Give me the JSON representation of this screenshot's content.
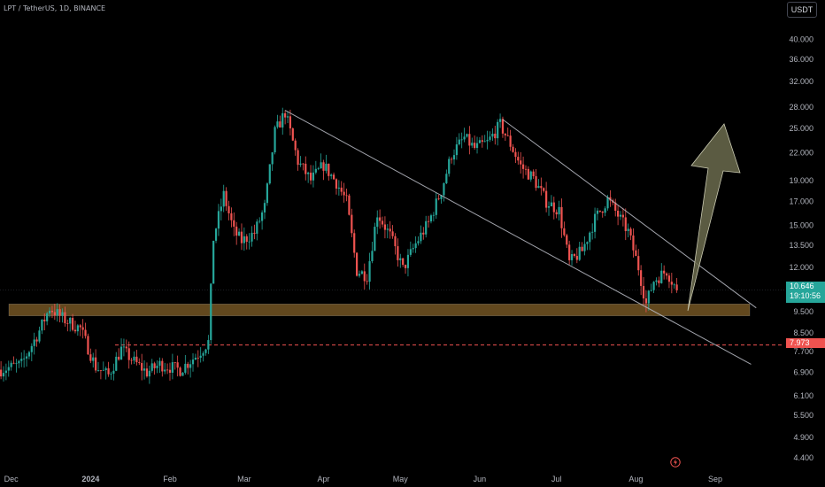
{
  "header": {
    "symbol": "LPT / TetherUS, 1D, BINANCE"
  },
  "toolbar": {
    "currency": "USDT",
    "flash_icon": "lightning-icon"
  },
  "price_tags": {
    "current_price": "10.646",
    "countdown": "19:10:56",
    "level_price": "7.973"
  },
  "colors": {
    "up": "#26a69a",
    "down": "#ef5350",
    "zone": "#7a5a25",
    "arrow": "#6b6b4e",
    "level": "#ef5350",
    "trendline": "#b2b5be",
    "axis_text": "#b2b5be"
  },
  "chart_data": {
    "type": "candlestick",
    "y_scale": "log",
    "ylim": [
      4.1,
      44.0
    ],
    "y_ticks": [
      "40.000",
      "36.000",
      "32.000",
      "28.000",
      "25.000",
      "22.000",
      "19.000",
      "17.000",
      "15.000",
      "13.500",
      "12.000",
      "10.500",
      "9.500",
      "8.500",
      "7.700",
      "6.900",
      "6.100",
      "5.500",
      "4.900",
      "4.400"
    ],
    "x_labels": [
      "Dec",
      "2024",
      "Feb",
      "Mar",
      "Apr",
      "May",
      "Jun",
      "Jul",
      "Aug",
      "Sep"
    ],
    "x_label_dates": [
      "2023-12-01",
      "2024-01-01",
      "2024-02-01",
      "2024-03-01",
      "2024-04-01",
      "2024-05-01",
      "2024-06-01",
      "2024-07-01",
      "2024-08-01",
      "2024-09-01"
    ],
    "closes": [
      {
        "date": "2023-11-27",
        "close": 7.0
      },
      {
        "date": "2023-12-05",
        "close": 7.2
      },
      {
        "date": "2023-12-12",
        "close": 8.6
      },
      {
        "date": "2023-12-16",
        "close": 9.7
      },
      {
        "date": "2023-12-22",
        "close": 9.1
      },
      {
        "date": "2023-12-28",
        "close": 8.7
      },
      {
        "date": "2024-01-03",
        "close": 7.1
      },
      {
        "date": "2024-01-08",
        "close": 6.8
      },
      {
        "date": "2024-01-13",
        "close": 7.8
      },
      {
        "date": "2024-01-18",
        "close": 7.3
      },
      {
        "date": "2024-01-23",
        "close": 6.9
      },
      {
        "date": "2024-01-28",
        "close": 7.2
      },
      {
        "date": "2024-02-05",
        "close": 7.0
      },
      {
        "date": "2024-02-12",
        "close": 7.6
      },
      {
        "date": "2024-02-16",
        "close": 8.1
      },
      {
        "date": "2024-02-18",
        "close": 14.0
      },
      {
        "date": "2024-02-22",
        "close": 17.6
      },
      {
        "date": "2024-02-26",
        "close": 14.5
      },
      {
        "date": "2024-02-29",
        "close": 13.8
      },
      {
        "date": "2024-03-05",
        "close": 14.4
      },
      {
        "date": "2024-03-09",
        "close": 16.5
      },
      {
        "date": "2024-03-13",
        "close": 24.5
      },
      {
        "date": "2024-03-17",
        "close": 27.2
      },
      {
        "date": "2024-03-22",
        "close": 21.0
      },
      {
        "date": "2024-03-27",
        "close": 19.0
      },
      {
        "date": "2024-04-01",
        "close": 20.6
      },
      {
        "date": "2024-04-06",
        "close": 18.8
      },
      {
        "date": "2024-04-10",
        "close": 17.0
      },
      {
        "date": "2024-04-14",
        "close": 11.8
      },
      {
        "date": "2024-04-18",
        "close": 11.5
      },
      {
        "date": "2024-04-22",
        "close": 16.0
      },
      {
        "date": "2024-04-27",
        "close": 14.2
      },
      {
        "date": "2024-05-02",
        "close": 11.9
      },
      {
        "date": "2024-05-07",
        "close": 13.6
      },
      {
        "date": "2024-05-12",
        "close": 15.2
      },
      {
        "date": "2024-05-17",
        "close": 18.0
      },
      {
        "date": "2024-05-21",
        "close": 21.8
      },
      {
        "date": "2024-05-26",
        "close": 23.8
      },
      {
        "date": "2024-05-30",
        "close": 22.5
      },
      {
        "date": "2024-06-04",
        "close": 23.2
      },
      {
        "date": "2024-06-09",
        "close": 25.5
      },
      {
        "date": "2024-06-13",
        "close": 23.0
      },
      {
        "date": "2024-06-17",
        "close": 20.5
      },
      {
        "date": "2024-06-22",
        "close": 19.2
      },
      {
        "date": "2024-06-27",
        "close": 17.0
      },
      {
        "date": "2024-07-02",
        "close": 16.2
      },
      {
        "date": "2024-07-06",
        "close": 12.3
      },
      {
        "date": "2024-07-11",
        "close": 13.1
      },
      {
        "date": "2024-07-16",
        "close": 15.5
      },
      {
        "date": "2024-07-21",
        "close": 17.2
      },
      {
        "date": "2024-07-25",
        "close": 15.8
      },
      {
        "date": "2024-07-29",
        "close": 14.5
      },
      {
        "date": "2024-08-02",
        "close": 12.0
      },
      {
        "date": "2024-08-05",
        "close": 9.9
      },
      {
        "date": "2024-08-08",
        "close": 11.2
      },
      {
        "date": "2024-08-13",
        "close": 11.8
      },
      {
        "date": "2024-08-17",
        "close": 10.646
      }
    ],
    "support_zone": [
      9.3,
      9.9
    ],
    "level_line": 7.973,
    "trendlines": [
      {
        "start": {
          "date": "2024-03-17",
          "price": 27.5
        },
        "end": {
          "date": "2024-09-15",
          "price": 7.2
        }
      },
      {
        "start": {
          "date": "2024-06-10",
          "price": 26.2
        },
        "end": {
          "date": "2024-09-17",
          "price": 9.7
        }
      }
    ]
  }
}
